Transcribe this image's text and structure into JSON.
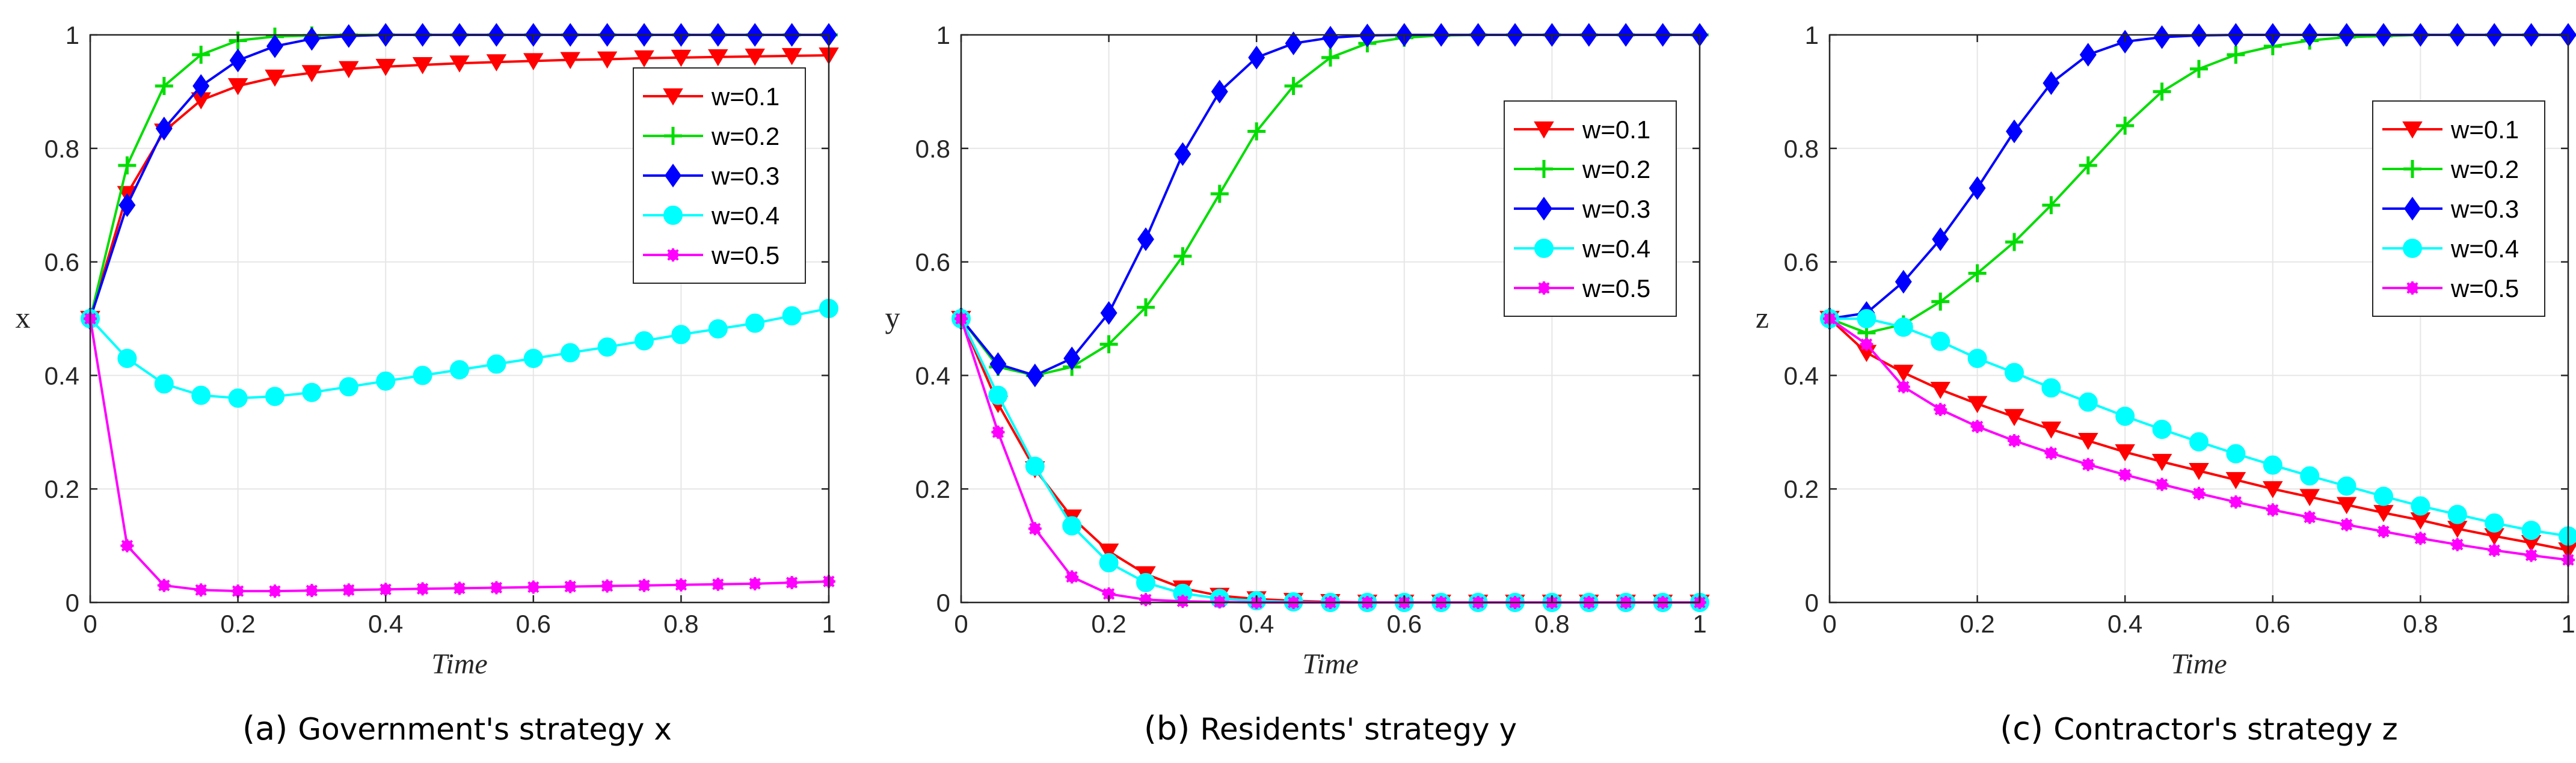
{
  "chart_data": [
    {
      "type": "line",
      "id": "a",
      "caption_letter": "(a)",
      "caption_text": "Government's strategy x",
      "xlabel": "Time",
      "ylabel": "x",
      "xlim": [
        0,
        1
      ],
      "ylim": [
        0,
        1
      ],
      "xticks": [
        "0",
        "0.2",
        "0.4",
        "0.6",
        "0.8",
        "1"
      ],
      "yticks": [
        "0",
        "0.2",
        "0.4",
        "0.6",
        "0.8",
        "1"
      ],
      "grid": true,
      "legend_position": "top-right",
      "x": [
        0,
        0.05,
        0.1,
        0.15,
        0.2,
        0.25,
        0.3,
        0.35,
        0.4,
        0.45,
        0.5,
        0.55,
        0.6,
        0.65,
        0.7,
        0.75,
        0.8,
        0.85,
        0.9,
        0.95,
        1.0
      ],
      "series": [
        {
          "name": "w=0.1",
          "color": "#ff0000",
          "marker": "triangle-down",
          "values": [
            0.5,
            0.72,
            0.83,
            0.885,
            0.91,
            0.925,
            0.933,
            0.94,
            0.944,
            0.947,
            0.95,
            0.952,
            0.954,
            0.956,
            0.957,
            0.959,
            0.96,
            0.961,
            0.962,
            0.963,
            0.964
          ]
        },
        {
          "name": "w=0.2",
          "color": "#00dd00",
          "marker": "plus",
          "values": [
            0.5,
            0.77,
            0.91,
            0.965,
            0.99,
            0.997,
            0.999,
            1,
            1,
            1,
            1,
            1,
            1,
            1,
            1,
            1,
            1,
            1,
            1,
            1,
            1
          ]
        },
        {
          "name": "w=0.3",
          "color": "#0000ff",
          "marker": "diamond",
          "values": [
            0.5,
            0.7,
            0.835,
            0.91,
            0.955,
            0.98,
            0.993,
            0.998,
            1,
            1,
            1,
            1,
            1,
            1,
            1,
            1,
            1,
            1,
            1,
            1,
            1
          ]
        },
        {
          "name": "w=0.4",
          "color": "#00ffff",
          "marker": "circle",
          "values": [
            0.5,
            0.43,
            0.385,
            0.365,
            0.36,
            0.363,
            0.37,
            0.38,
            0.39,
            0.4,
            0.41,
            0.42,
            0.43,
            0.44,
            0.45,
            0.461,
            0.472,
            0.482,
            0.492,
            0.505,
            0.518
          ]
        },
        {
          "name": "w=0.5",
          "color": "#ff00ff",
          "marker": "asterisk",
          "values": [
            0.5,
            0.1,
            0.03,
            0.022,
            0.02,
            0.02,
            0.021,
            0.022,
            0.023,
            0.024,
            0.025,
            0.026,
            0.027,
            0.028,
            0.029,
            0.03,
            0.031,
            0.032,
            0.033,
            0.035,
            0.037
          ]
        }
      ]
    },
    {
      "type": "line",
      "id": "b",
      "caption_letter": "(b)",
      "caption_text": "Residents' strategy y",
      "xlabel": "Time",
      "ylabel": "y",
      "xlim": [
        0,
        1
      ],
      "ylim": [
        0,
        1
      ],
      "xticks": [
        "0",
        "0.2",
        "0.4",
        "0.6",
        "0.8",
        "1"
      ],
      "yticks": [
        "0",
        "0.2",
        "0.4",
        "0.6",
        "0.8",
        "1"
      ],
      "grid": true,
      "legend_position": "top-right",
      "x": [
        0,
        0.05,
        0.1,
        0.15,
        0.2,
        0.25,
        0.3,
        0.35,
        0.4,
        0.45,
        0.5,
        0.55,
        0.6,
        0.65,
        0.7,
        0.75,
        0.8,
        0.85,
        0.9,
        0.95,
        1.0
      ],
      "series": [
        {
          "name": "w=0.1",
          "color": "#ff0000",
          "marker": "triangle-down",
          "values": [
            0.5,
            0.35,
            0.235,
            0.15,
            0.09,
            0.05,
            0.025,
            0.012,
            0.006,
            0.003,
            0.001,
            0,
            0,
            0,
            0,
            0,
            0,
            0,
            0,
            0,
            0
          ]
        },
        {
          "name": "w=0.2",
          "color": "#00dd00",
          "marker": "plus",
          "values": [
            0.5,
            0.415,
            0.4,
            0.415,
            0.455,
            0.52,
            0.61,
            0.72,
            0.83,
            0.91,
            0.96,
            0.985,
            0.995,
            0.999,
            1,
            1,
            1,
            1,
            1,
            1,
            1
          ]
        },
        {
          "name": "w=0.3",
          "color": "#0000ff",
          "marker": "diamond",
          "values": [
            0.5,
            0.42,
            0.4,
            0.43,
            0.51,
            0.64,
            0.79,
            0.9,
            0.96,
            0.985,
            0.995,
            0.999,
            1,
            1,
            1,
            1,
            1,
            1,
            1,
            1,
            1
          ]
        },
        {
          "name": "w=0.4",
          "color": "#00ffff",
          "marker": "circle",
          "values": [
            0.5,
            0.365,
            0.24,
            0.135,
            0.07,
            0.035,
            0.016,
            0.007,
            0.003,
            0.001,
            0,
            0,
            0,
            0,
            0,
            0,
            0,
            0,
            0,
            0,
            0
          ]
        },
        {
          "name": "w=0.5",
          "color": "#ff00ff",
          "marker": "asterisk",
          "values": [
            0.5,
            0.3,
            0.13,
            0.045,
            0.015,
            0.005,
            0.002,
            0.001,
            0,
            0,
            0,
            0,
            0,
            0,
            0,
            0,
            0,
            0,
            0,
            0,
            0
          ]
        }
      ]
    },
    {
      "type": "line",
      "id": "c",
      "caption_letter": "(c)",
      "caption_text": "Contractor's strategy z",
      "xlabel": "Time",
      "ylabel": "z",
      "xlim": [
        0,
        1
      ],
      "ylim": [
        0,
        1
      ],
      "xticks": [
        "0",
        "0.2",
        "0.4",
        "0.6",
        "0.8",
        "1"
      ],
      "yticks": [
        "0",
        "0.2",
        "0.4",
        "0.6",
        "0.8",
        "1"
      ],
      "grid": true,
      "legend_position": "top-right",
      "x": [
        0,
        0.05,
        0.1,
        0.15,
        0.2,
        0.25,
        0.3,
        0.35,
        0.4,
        0.45,
        0.5,
        0.55,
        0.6,
        0.65,
        0.7,
        0.75,
        0.8,
        0.85,
        0.9,
        0.95,
        1.0
      ],
      "series": [
        {
          "name": "w=0.1",
          "color": "#ff0000",
          "marker": "triangle-down",
          "values": [
            0.5,
            0.44,
            0.405,
            0.375,
            0.35,
            0.327,
            0.305,
            0.285,
            0.265,
            0.248,
            0.232,
            0.216,
            0.2,
            0.186,
            0.172,
            0.158,
            0.145,
            0.13,
            0.117,
            0.105,
            0.092
          ]
        },
        {
          "name": "w=0.2",
          "color": "#00dd00",
          "marker": "plus",
          "values": [
            0.5,
            0.475,
            0.49,
            0.53,
            0.58,
            0.635,
            0.7,
            0.77,
            0.84,
            0.9,
            0.94,
            0.965,
            0.98,
            0.99,
            0.996,
            0.998,
            1,
            1,
            1,
            1,
            1
          ]
        },
        {
          "name": "w=0.3",
          "color": "#0000ff",
          "marker": "diamond",
          "values": [
            0.5,
            0.51,
            0.565,
            0.64,
            0.73,
            0.83,
            0.915,
            0.965,
            0.988,
            0.996,
            0.999,
            1,
            1,
            1,
            1,
            1,
            1,
            1,
            1,
            1,
            1
          ]
        },
        {
          "name": "w=0.4",
          "color": "#00ffff",
          "marker": "circle",
          "values": [
            0.5,
            0.5,
            0.485,
            0.46,
            0.43,
            0.405,
            0.378,
            0.353,
            0.328,
            0.305,
            0.283,
            0.262,
            0.242,
            0.223,
            0.205,
            0.187,
            0.17,
            0.155,
            0.14,
            0.127,
            0.117
          ]
        },
        {
          "name": "w=0.5",
          "color": "#ff00ff",
          "marker": "asterisk",
          "values": [
            0.5,
            0.455,
            0.38,
            0.34,
            0.31,
            0.285,
            0.263,
            0.243,
            0.225,
            0.208,
            0.192,
            0.177,
            0.163,
            0.15,
            0.137,
            0.125,
            0.113,
            0.102,
            0.092,
            0.083,
            0.075
          ]
        }
      ]
    }
  ]
}
